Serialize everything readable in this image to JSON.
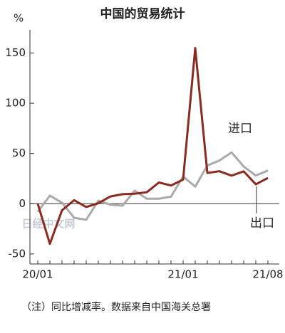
{
  "chart_data": {
    "type": "line",
    "title": "中国的贸易统计",
    "y_label": "%",
    "categories": [
      "20/01",
      null,
      null,
      null,
      null,
      null,
      null,
      null,
      null,
      null,
      null,
      null,
      "21/01",
      null,
      null,
      null,
      null,
      null,
      null,
      "21/08"
    ],
    "series": [
      {
        "name": "出口",
        "color": "#8b2a1e",
        "values": [
          0,
          -40,
          -6.6,
          3.5,
          -3.3,
          0.5,
          7.2,
          9.5,
          9.9,
          11.4,
          21.1,
          18.1,
          24,
          154.9,
          30.6,
          32.3,
          27.9,
          32.2,
          19.3,
          25.6
        ]
      },
      {
        "name": "进口",
        "color": "#aaaaaa",
        "values": [
          -8,
          8,
          1,
          -14,
          -16,
          3,
          -1,
          -2,
          13,
          5,
          5,
          7,
          27,
          17,
          38,
          43,
          51,
          37,
          28,
          33
        ]
      }
    ],
    "ylim": [
      -60,
      173
    ],
    "yticks": [
      -50,
      0,
      50,
      100,
      150
    ],
    "watermark": "日经中文网",
    "note": "（注）同比增减率。数据来自中国海关总署"
  }
}
